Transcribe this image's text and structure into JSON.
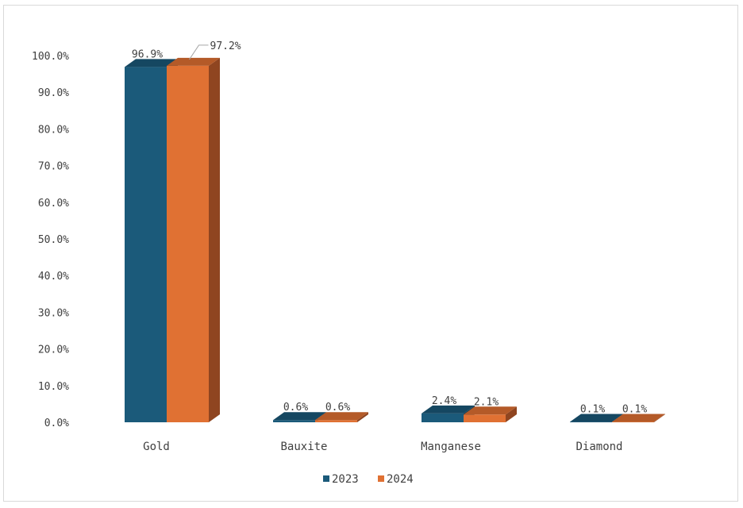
{
  "chart_data": {
    "type": "bar",
    "categories": [
      "Gold",
      "Bauxite",
      "Manganese",
      "Diamond"
    ],
    "series": [
      {
        "name": "2023",
        "values": [
          96.9,
          0.6,
          2.4,
          0.1
        ],
        "color": "#1b5a7a",
        "top": "#154761",
        "side": "#123d54",
        "labels": [
          "96.9%",
          "0.6%",
          "2.4%",
          "0.1%"
        ]
      },
      {
        "name": "2024",
        "values": [
          97.2,
          0.6,
          2.1,
          0.1
        ],
        "color": "#e07133",
        "top": "#b45a28",
        "side": "#8f4520",
        "labels": [
          "97.2%",
          "0.6%",
          "2.1%",
          "0.1%"
        ]
      }
    ],
    "ylim": [
      0,
      100
    ],
    "yticks": [
      "0.0%",
      "10.0%",
      "20.0%",
      "30.0%",
      "40.0%",
      "50.0%",
      "60.0%",
      "70.0%",
      "80.0%",
      "90.0%",
      "100.0%"
    ],
    "legend_position": "bottom",
    "grid": false,
    "style": "3d-clustered-bar"
  }
}
